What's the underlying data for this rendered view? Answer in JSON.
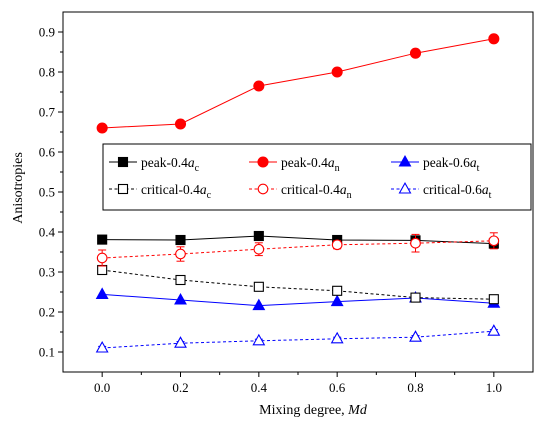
{
  "chart_data": {
    "type": "line",
    "xlabel": "Mixing degree, ",
    "xlabel_italic": "Md",
    "ylabel": "Anisotropies",
    "xlim": [
      -0.1,
      1.1
    ],
    "ylim": [
      0.05,
      0.95
    ],
    "x_ticks": [
      "0.0",
      "0.2",
      "0.4",
      "0.6",
      "0.8",
      "1.0"
    ],
    "y_ticks": [
      "0.1",
      "0.2",
      "0.3",
      "0.4",
      "0.5",
      "0.6",
      "0.7",
      "0.8",
      "0.9"
    ],
    "grid": false,
    "legend_position": "middle-left",
    "x": [
      0.0,
      0.2,
      0.4,
      0.6,
      0.8,
      1.0
    ],
    "series": [
      {
        "name": "peak-0.4",
        "name_italic": "a",
        "name_sub": "c",
        "values": [
          0.381,
          0.38,
          0.39,
          0.38,
          0.379,
          0.371
        ],
        "error": [
          0.0,
          0.0,
          0.0,
          0.0,
          0.0,
          0.012
        ],
        "color": "#000000",
        "marker": "square",
        "filled": true,
        "dashed": false
      },
      {
        "name": "peak-0.4",
        "name_italic": "a",
        "name_sub": "n",
        "values": [
          0.66,
          0.67,
          0.765,
          0.8,
          0.847,
          0.883
        ],
        "error": [
          0,
          0,
          0,
          0,
          0,
          0
        ],
        "color": "#ff0000",
        "marker": "circle",
        "filled": true,
        "dashed": false
      },
      {
        "name": "peak-0.6",
        "name_italic": "a",
        "name_sub": "t",
        "values": [
          0.244,
          0.23,
          0.216,
          0.226,
          0.235,
          0.222
        ],
        "error": [
          0,
          0,
          0,
          0,
          0,
          0
        ],
        "color": "#0000ff",
        "marker": "triangle",
        "filled": true,
        "dashed": false
      },
      {
        "name": "critical-0.4",
        "name_italic": "a",
        "name_sub": "c",
        "values": [
          0.305,
          0.28,
          0.263,
          0.253,
          0.236,
          0.232
        ],
        "error": [
          0.008,
          0.006,
          0.005,
          0.004,
          0.004,
          0.004
        ],
        "color": "#000000",
        "marker": "square",
        "filled": false,
        "dashed": true
      },
      {
        "name": "critical-0.4",
        "name_italic": "a",
        "name_sub": "n",
        "values": [
          0.335,
          0.345,
          0.357,
          0.368,
          0.372,
          0.378
        ],
        "error": [
          0.02,
          0.018,
          0.016,
          0.01,
          0.022,
          0.02
        ],
        "color": "#ff0000",
        "marker": "circle",
        "filled": false,
        "dashed": true
      },
      {
        "name": "critical-0.6",
        "name_italic": "a",
        "name_sub": "t",
        "values": [
          0.11,
          0.122,
          0.128,
          0.133,
          0.137,
          0.152
        ],
        "error": [
          0.004,
          0.004,
          0.004,
          0.004,
          0.004,
          0.004
        ],
        "color": "#0000ff",
        "marker": "triangle",
        "filled": false,
        "dashed": true
      }
    ]
  }
}
